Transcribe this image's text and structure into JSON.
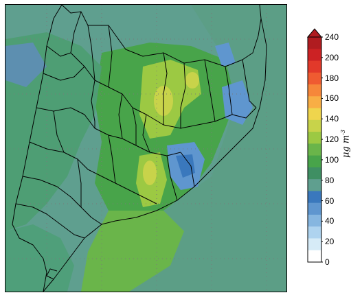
{
  "colorbar": {
    "units_main": "μg m",
    "units_exp": "-3",
    "ticks": [
      "240",
      "200",
      "180",
      "160",
      "140",
      "120",
      "100",
      "80",
      "60",
      "40",
      "20",
      "0"
    ],
    "bands_top_to_bottom": [
      "#b01c20",
      "#cc2224",
      "#e2392a",
      "#ef5b31",
      "#f6873a",
      "#f8ae45",
      "#efd54d",
      "#c8d34a",
      "#9cc943",
      "#6ab54a",
      "#48a44a",
      "#3f8f63",
      "#5f9f8f",
      "#3a78bd",
      "#5f96cf",
      "#86b6e0",
      "#aed3ef",
      "#d6ebf7",
      "#ffffff"
    ]
  },
  "map": {
    "background_color": "#5c9e86",
    "land_green": "#6ab54a",
    "light_green": "#9cc943",
    "yellow_green": "#c8d34a",
    "blue": "#5f96cf",
    "dark_blue": "#3a78bd",
    "boundary_color": "#000000",
    "grid_color": "#8a8a8a"
  }
}
